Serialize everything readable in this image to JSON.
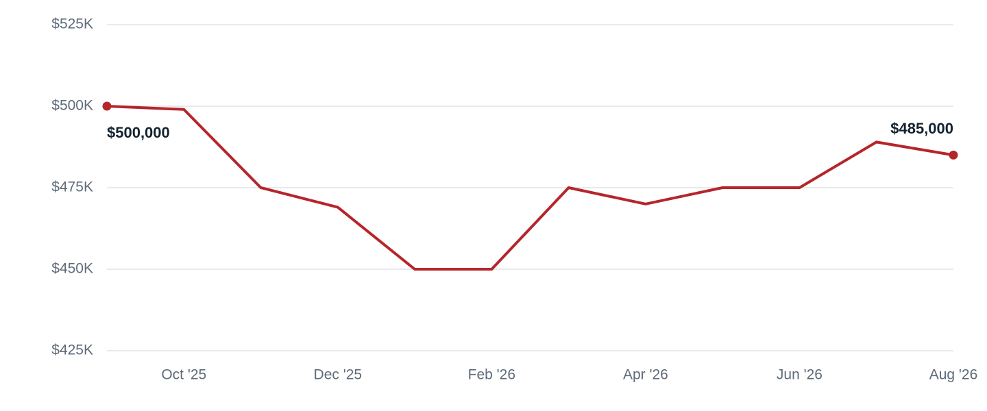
{
  "chart_data": {
    "type": "line",
    "categories": [
      null,
      "Oct '25",
      null,
      "Dec '25",
      null,
      "Feb '26",
      null,
      "Apr '26",
      null,
      "Jun '26",
      null,
      "Aug '26"
    ],
    "series": [
      {
        "color": "#b5262b",
        "values": [
          500000,
          499000,
          475000,
          469000,
          450000,
          450000,
          475000,
          470000,
          475000,
          475000,
          489000,
          485000
        ],
        "value_labels": [
          "$500,000",
          null,
          null,
          null,
          null,
          null,
          null,
          null,
          null,
          null,
          null,
          "$485,000"
        ]
      }
    ],
    "ylim": [
      425000,
      525000
    ],
    "yticks": [
      {
        "value": 425000,
        "label": "$425K"
      },
      {
        "value": 450000,
        "label": "$450K"
      },
      {
        "value": 475000,
        "label": "$475K"
      },
      {
        "value": 500000,
        "label": "$500K"
      },
      {
        "value": 525000,
        "label": "$525K"
      }
    ],
    "grid": true
  }
}
